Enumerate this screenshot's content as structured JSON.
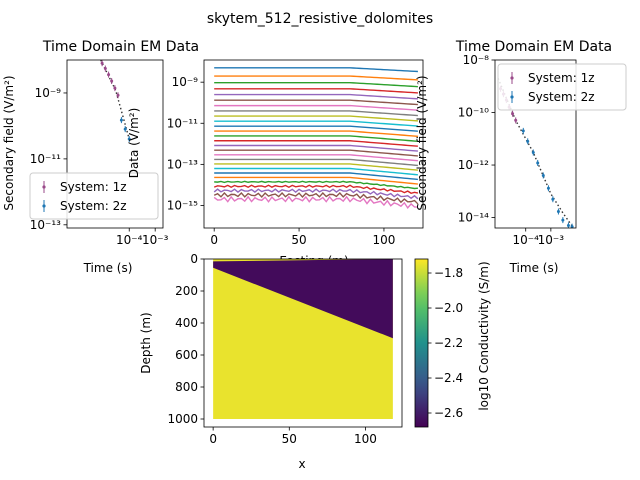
{
  "figure": {
    "suptitle": "skytem_512_resistive_dolomites"
  },
  "chart_data": [
    {
      "id": "left-decay",
      "type": "scatter",
      "title": "Time Domain EM Data",
      "xlabel": "Time (s)",
      "ylabel": "Secondary field (V/m²)",
      "xscale": "log",
      "yscale": "log",
      "xlim": [
        4e-07,
        0.002
      ],
      "ylim": [
        8e-14,
        1e-08
      ],
      "xticks": [
        {
          "v": 0.0001,
          "label": "10⁻⁴"
        },
        {
          "v": 0.001,
          "label": "10⁻³"
        }
      ],
      "yticks": [
        {
          "v": 1e-09,
          "label": "10⁻⁹"
        },
        {
          "v": 1e-11,
          "label": "10⁻¹¹"
        },
        {
          "v": 1e-13,
          "label": "10⁻¹³"
        }
      ],
      "legend": {
        "position": "lower-left",
        "entries": [
          "System: 1z",
          "System: 2z"
        ]
      },
      "series": [
        {
          "name": "System: 1z",
          "color": "#9a4a8a",
          "x": [
            9e-06,
            1.2e-05,
            1.6e-05,
            2.1e-05,
            2.8e-05,
            3.7e-05
          ],
          "y": [
            8e-09,
            5.5e-09,
            3.6e-09,
            2.3e-09,
            1.4e-09,
            8.5e-10
          ]
        },
        {
          "name": "System: 2z",
          "color": "#1f77b4",
          "x": [
            5e-05,
            7e-05,
            0.0001
          ],
          "y": [
            1.5e-10,
            8e-11,
            4e-11
          ]
        }
      ],
      "fit_line": {
        "color": "#333333",
        "x": [
          8e-06,
          3e-05,
          0.0001
        ],
        "y": [
          1e-08,
          1.2e-09,
          4e-11
        ]
      }
    },
    {
      "id": "profile",
      "type": "line",
      "title": "",
      "xlabel": "Easting (m)",
      "ylabel": "Data (V/m²)",
      "xlim": [
        -6,
        123
      ],
      "yscale": "log",
      "ylim": [
        8e-17,
        1.2e-08
      ],
      "xticks": [
        {
          "v": 0,
          "label": "0"
        },
        {
          "v": 50,
          "label": "50"
        },
        {
          "v": 100,
          "label": "100"
        }
      ],
      "yticks": [
        {
          "v": 1e-09,
          "label": "10⁻⁹"
        },
        {
          "v": 1e-11,
          "label": "10⁻¹¹"
        },
        {
          "v": 1e-13,
          "label": "10⁻¹³"
        },
        {
          "v": 1e-15,
          "label": "10⁻¹⁵"
        }
      ],
      "easting": [
        0,
        120
      ],
      "n_channels": 27,
      "top_level": 5e-09,
      "bottom_level": 2e-15,
      "colors": [
        "#1f77b4",
        "#ff7f0e",
        "#2ca02c",
        "#d62728",
        "#9467bd",
        "#8c564b",
        "#e377c2",
        "#7f7f7f",
        "#bcbd22",
        "#17becf"
      ]
    },
    {
      "id": "right-decay",
      "type": "scatter",
      "title": "Time Domain EM Data",
      "xlabel": "Time (s)",
      "ylabel": "Secondary field (V/m²)",
      "xscale": "log",
      "yscale": "log",
      "xlim": [
        6e-06,
        0.01
      ],
      "ylim": [
        4e-15,
        1e-08
      ],
      "xticks": [
        {
          "v": 0.0001,
          "label": "10⁻⁴"
        },
        {
          "v": 0.001,
          "label": "10⁻³"
        }
      ],
      "yticks": [
        {
          "v": 1e-08,
          "label": "10⁻⁸"
        },
        {
          "v": 1e-10,
          "label": "10⁻¹⁰"
        },
        {
          "v": 1e-12,
          "label": "10⁻¹²"
        },
        {
          "v": 1e-14,
          "label": "10⁻¹⁴"
        }
      ],
      "legend": {
        "position": "upper-right",
        "entries": [
          "System: 1z",
          "System: 2z"
        ]
      },
      "series": [
        {
          "name": "System: 1z",
          "color": "#9a4a8a",
          "x": [
            1e-05,
            1.3e-05,
            1.7e-05,
            2.2e-05,
            3e-05,
            4e-05
          ],
          "y": [
            8e-10,
            5e-10,
            3e-10,
            1.6e-10,
            9e-11,
            5e-11
          ]
        },
        {
          "name": "System: 2z",
          "color": "#1f77b4",
          "x": [
            8e-05,
            0.00012,
            0.0002,
            0.0003,
            0.0005,
            0.0008,
            0.0012,
            0.002,
            0.003,
            0.005,
            0.007
          ],
          "y": [
            2e-11,
            8e-12,
            3e-12,
            1.2e-12,
            4e-13,
            1.3e-13,
            5e-14,
            1.7e-14,
            8e-15,
            5e-15,
            4.5e-15
          ]
        }
      ],
      "fit_line": {
        "color": "#333333",
        "x": [
          8e-06,
          4e-05,
          0.0002,
          0.001,
          0.003,
          0.008
        ],
        "y": [
          2e-09,
          5e-11,
          3e-12,
          8e-14,
          1.5e-14,
          4e-15
        ]
      }
    },
    {
      "id": "model",
      "type": "heatmap",
      "title": "",
      "xlabel": "x",
      "ylabel": "Depth (m)",
      "xlim": [
        -6,
        124
      ],
      "ylim": [
        1050,
        0
      ],
      "xticks": [
        {
          "v": 0,
          "label": "0"
        },
        {
          "v": 50,
          "label": "50"
        },
        {
          "v": 100,
          "label": "100"
        }
      ],
      "yticks": [
        {
          "v": 0,
          "label": "0"
        },
        {
          "v": 200,
          "label": "200"
        },
        {
          "v": 400,
          "label": "400"
        },
        {
          "v": 600,
          "label": "600"
        },
        {
          "v": 800,
          "label": "800"
        },
        {
          "v": 1000,
          "label": "1000"
        }
      ],
      "extent": {
        "x": [
          0,
          118
        ],
        "depth": [
          0,
          1000
        ]
      },
      "layer": {
        "top_depth_at_x0": 15,
        "top_depth_at_xmax": 0,
        "bottom_depth_at_x0": 55,
        "bottom_depth_at_xmax": 495,
        "value": -2.65
      },
      "background_value": -1.75,
      "colorbar": {
        "label": "log10 Conductivity (S/m)",
        "range": [
          -2.68,
          -1.72
        ],
        "ticks": [
          {
            "v": -1.8,
            "label": "−1.8"
          },
          {
            "v": -2.0,
            "label": "−2.0"
          },
          {
            "v": -2.2,
            "label": "−2.2"
          },
          {
            "v": -2.4,
            "label": "−2.4"
          },
          {
            "v": -2.6,
            "label": "−2.6"
          }
        ],
        "colormap": "viridis"
      }
    }
  ]
}
